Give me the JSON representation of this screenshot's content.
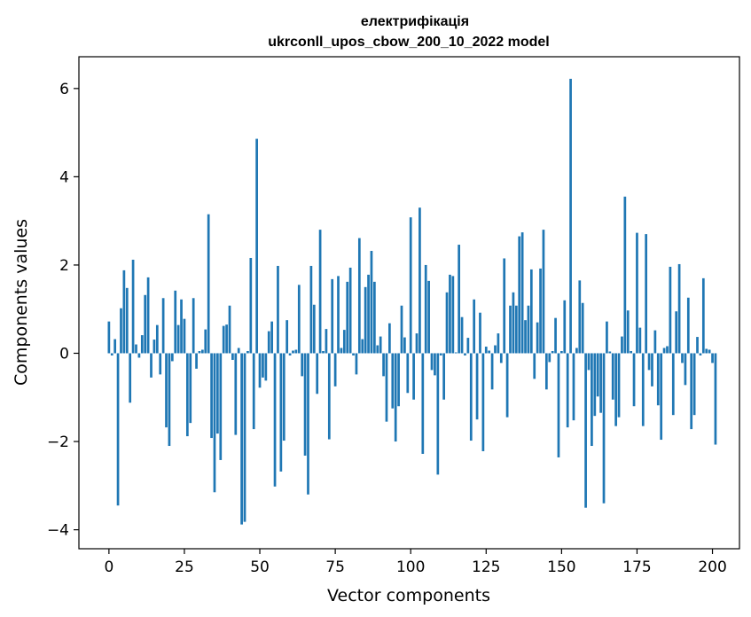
{
  "chart_data": {
    "type": "bar",
    "title": "електрифікація",
    "subtitle": "ukrconll_upos_cbow_200_10_2022 model",
    "xlabel": "Vector components",
    "ylabel": "Components values",
    "xlim": [
      -9.95,
      208.95
    ],
    "ylim": [
      -4.43,
      6.72
    ],
    "xticks": [
      0,
      25,
      50,
      75,
      100,
      125,
      150,
      175,
      200
    ],
    "xtick_labels": [
      "0",
      "25",
      "50",
      "75",
      "100",
      "125",
      "150",
      "175",
      "200"
    ],
    "yticks": [
      -4,
      -2,
      0,
      2,
      4,
      6
    ],
    "ytick_labels": [
      "−4",
      "−2",
      "0",
      "2",
      "4",
      "6"
    ],
    "grid": false,
    "color": "#1f77b4",
    "values": [
      0.72,
      -0.05,
      0.32,
      -3.45,
      1.02,
      1.88,
      1.48,
      -1.12,
      2.12,
      0.2,
      -0.1,
      0.41,
      1.32,
      1.72,
      -0.55,
      0.31,
      0.64,
      -0.48,
      1.25,
      -1.68,
      -2.1,
      -0.18,
      1.42,
      0.64,
      1.22,
      0.78,
      -1.88,
      -1.58,
      1.25,
      -0.35,
      0.05,
      0.08,
      0.54,
      3.15,
      -1.92,
      -3.15,
      -1.82,
      -2.42,
      0.62,
      0.65,
      1.08,
      -0.15,
      -1.85,
      0.12,
      -3.88,
      -3.82,
      0.05,
      2.16,
      -1.72,
      4.86,
      -0.78,
      -0.55,
      -0.62,
      0.5,
      0.72,
      -3.02,
      1.98,
      -2.68,
      -1.98,
      0.75,
      -0.05,
      0.06,
      0.08,
      1.55,
      -0.52,
      -2.32,
      -3.2,
      1.98,
      1.1,
      -0.92,
      2.8,
      0.05,
      0.55,
      -1.95,
      1.68,
      -0.75,
      1.75,
      0.12,
      0.53,
      1.62,
      1.94,
      -0.05,
      -0.48,
      2.61,
      0.32,
      1.5,
      1.78,
      2.32,
      1.62,
      0.18,
      0.38,
      -0.52,
      -1.55,
      0.68,
      -1.25,
      -2.0,
      -1.2,
      1.08,
      0.36,
      -0.9,
      3.08,
      -1.05,
      0.45,
      3.3,
      -2.28,
      2.0,
      1.64,
      -0.38,
      -0.5,
      -2.75,
      -0.05,
      -1.05,
      1.38,
      1.78,
      1.75,
      0.02,
      2.46,
      0.82,
      -0.05,
      0.35,
      -1.98,
      1.22,
      -1.5,
      0.92,
      -2.22,
      0.15,
      0.06,
      -0.82,
      0.18,
      0.45,
      -0.22,
      2.15,
      -1.45,
      1.08,
      1.38,
      1.08,
      2.65,
      2.74,
      0.75,
      1.08,
      1.9,
      -0.58,
      0.7,
      1.92,
      2.8,
      -0.82,
      -0.2,
      0.05,
      0.8,
      -2.36,
      0.05,
      1.2,
      -1.68,
      6.22,
      -1.52,
      0.12,
      1.65,
      1.14,
      -3.5,
      -0.38,
      -2.1,
      -1.42,
      -0.98,
      -1.35,
      -3.4,
      0.72,
      0.04,
      -1.05,
      -1.65,
      -1.45,
      0.38,
      3.55,
      0.97,
      0.05,
      -1.2,
      2.73,
      0.58,
      -1.65,
      2.7,
      -0.38,
      -0.75,
      0.52,
      -1.18,
      -1.96,
      0.12,
      0.16,
      1.96,
      -1.4,
      0.95,
      2.02,
      -0.22,
      -0.72,
      1.26,
      -1.72,
      -1.4,
      0.37,
      -0.05,
      1.7,
      0.1,
      0.08,
      -0.22,
      -2.07
    ]
  }
}
